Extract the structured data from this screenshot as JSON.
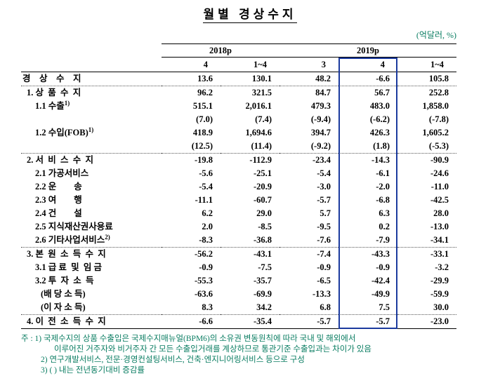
{
  "title": "월별 경상수지",
  "unit": "(억달러, %)",
  "colors": {
    "note_text": "#0a7d62",
    "highlight_border": "#1b3a9e",
    "text": "#000000"
  },
  "highlight": {
    "group": "2019p",
    "column": "4",
    "column_index": 3
  },
  "table": {
    "col_groups": [
      {
        "label": "2018p",
        "span": 2
      },
      {
        "label": "2019p",
        "span": 3
      }
    ],
    "sub_headers": [
      "4",
      "1~4",
      "3",
      "4",
      "1~4"
    ],
    "rows": [
      {
        "label": "경    상    수    지",
        "indent": 0,
        "values": [
          "13.6",
          "130.1",
          "48.2",
          "-6.6",
          "105.8"
        ]
      },
      {
        "label": "1. 상  품  수  지",
        "indent": 1,
        "sep": true,
        "values": [
          "96.2",
          "321.5",
          "84.7",
          "56.7",
          "252.8"
        ]
      },
      {
        "label": "1.1 수출",
        "sup": "1)",
        "indent": 2,
        "values": [
          "515.1",
          "2,016.1",
          "479.3",
          "483.0",
          "1,858.0"
        ]
      },
      {
        "label": "",
        "indent": 2,
        "values": [
          "(7.0)",
          "(7.4)",
          "(-9.4)",
          "(-6.2)",
          "(-7.8)"
        ]
      },
      {
        "label": "1.2 수입(FOB)",
        "sup": "1)",
        "indent": 2,
        "values": [
          "418.9",
          "1,694.6",
          "394.7",
          "426.3",
          "1,605.2"
        ]
      },
      {
        "label": "",
        "indent": 2,
        "values": [
          "(12.5)",
          "(11.4)",
          "(-9.2)",
          "(1.8)",
          "(-5.3)"
        ]
      },
      {
        "label": "2. 서  비  스  수  지",
        "indent": 1,
        "sep": true,
        "values": [
          "-19.8",
          "-112.9",
          "-23.4",
          "-14.3",
          "-90.9"
        ]
      },
      {
        "label": "2.1 가공서비스",
        "indent": 2,
        "values": [
          "-5.6",
          "-25.1",
          "-5.4",
          "-6.1",
          "-24.6"
        ]
      },
      {
        "label": "2.2 운        송",
        "indent": 2,
        "values": [
          "-5.4",
          "-20.9",
          "-3.0",
          "-2.0",
          "-11.0"
        ]
      },
      {
        "label": "2.3 여        행",
        "indent": 2,
        "values": [
          "-11.1",
          "-60.7",
          "-5.7",
          "-6.8",
          "-42.5"
        ]
      },
      {
        "label": "2.4 건        설",
        "indent": 2,
        "values": [
          "6.2",
          "29.0",
          "5.7",
          "6.3",
          "28.0"
        ]
      },
      {
        "label": "2.5 지식재산권사용료",
        "indent": 2,
        "values": [
          "2.0",
          "-8.5",
          "-9.5",
          "0.2",
          "-13.0"
        ]
      },
      {
        "label": "2.6 기타사업서비스",
        "sup": "2)",
        "indent": 2,
        "values": [
          "-8.3",
          "-36.8",
          "-7.6",
          "-7.9",
          "-34.1"
        ]
      },
      {
        "label": "3. 본  원  소  득  수  지",
        "indent": 1,
        "sep": true,
        "values": [
          "-56.2",
          "-43.1",
          "-7.4",
          "-43.3",
          "-33.1"
        ]
      },
      {
        "label": "3.1 급 료  및  임 금",
        "indent": 2,
        "values": [
          "-0.9",
          "-7.5",
          "-0.9",
          "-0.9",
          "-3.2"
        ]
      },
      {
        "label": "3.2 투  자  소  득",
        "indent": 2,
        "values": [
          "-55.3",
          "-35.7",
          "-6.5",
          "-42.4",
          "-29.9"
        ]
      },
      {
        "label": "(배 당 소 득)",
        "indent": 3,
        "values": [
          "-63.6",
          "-69.9",
          "-13.3",
          "-49.9",
          "-59.9"
        ]
      },
      {
        "label": "(이 자 소 득)",
        "indent": 3,
        "values": [
          "8.3",
          "34.2",
          "6.8",
          "7.5",
          "30.0"
        ]
      },
      {
        "label": "4. 이  전  소  득  수  지",
        "indent": 1,
        "sep": true,
        "values": [
          "-6.6",
          "-35.4",
          "-5.7",
          "-5.7",
          "-23.0"
        ]
      }
    ]
  },
  "footnotes": [
    {
      "text": "주 : 1) 국제수지의 상품 수출입은 국제수지매뉴얼(BPM6)의 소유권 변동원칙에 따라 국내 및 해외에서",
      "indent": 0
    },
    {
      "text": "이루어진 거주자와 비거주자 간 모든 수출입거래를 계상하므로 통관기준 수출입과는 차이가 있음",
      "indent": 2
    },
    {
      "text": "2) 연구개발서비스, 전문·경영컨설팅서비스, 건축·엔지니어링서비스 등으로 구성",
      "indent": 1
    },
    {
      "text": "3) ( ) 내는 전년동기대비 증감률",
      "indent": 1
    }
  ]
}
